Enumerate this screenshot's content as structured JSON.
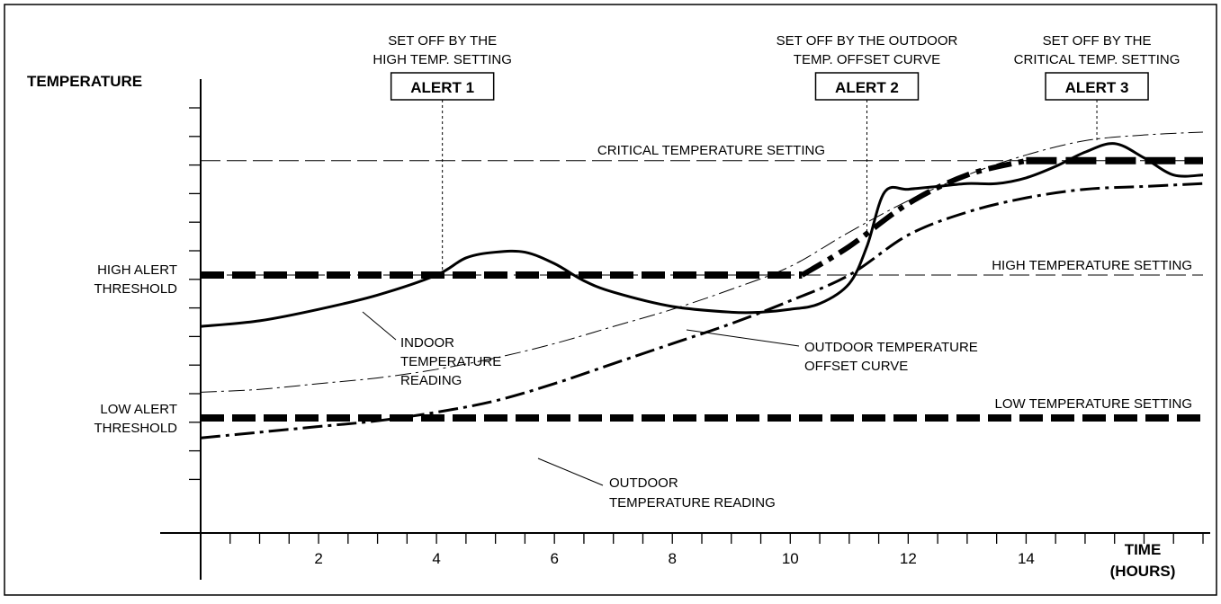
{
  "chart_data": {
    "type": "line",
    "y_title": "TEMPERATURE",
    "x_title_line1": "TIME",
    "x_title_line2": "(HOURS)",
    "x_tick_labels": [
      "2",
      "4",
      "6",
      "8",
      "10",
      "12",
      "14"
    ],
    "xlim": [
      0,
      17
    ],
    "y_axis_has_numbers": false,
    "grid": false,
    "left_labels": {
      "high_line1": "HIGH ALERT",
      "high_line2": "THRESHOLD",
      "low_line1": "LOW ALERT",
      "low_line2": "THRESHOLD"
    },
    "settings": {
      "critical": "CRITICAL TEMPERATURE SETTING",
      "high": "HIGH TEMPERATURE SETTING",
      "low": "LOW TEMPERATURE SETTING"
    },
    "alerts": [
      {
        "label": "ALERT 1",
        "note_line1": "SET OFF BY THE",
        "note_line2": "HIGH TEMP. SETTING",
        "time": 4.1
      },
      {
        "label": "ALERT 2",
        "note_line1": "SET OFF BY THE OUTDOOR",
        "note_line2": "TEMP. OFFSET CURVE",
        "time": 11.3
      },
      {
        "label": "ALERT 3",
        "note_line1": "SET OFF BY THE",
        "note_line2": "CRITICAL TEMP. SETTING",
        "time": 15.2
      }
    ],
    "curve_labels": {
      "indoor": [
        "INDOOR",
        "TEMPERATURE",
        "READING"
      ],
      "offset": [
        "OUTDOOR TEMPERATURE",
        "OFFSET CURVE"
      ],
      "outdoor": [
        "OUTDOOR",
        "TEMPERATURE READING"
      ]
    },
    "series": [
      {
        "key": "indoor",
        "style": "solid",
        "x": [
          0,
          1,
          2,
          3,
          4,
          4.5,
          5,
          5.5,
          6,
          6.5,
          7,
          8,
          9,
          9.5,
          10,
          10.5,
          11,
          11.3,
          11.6,
          12,
          12.5,
          13,
          13.5,
          14,
          14.5,
          15,
          15.5,
          16,
          16.5,
          17
        ],
        "y": [
          0.32,
          0.34,
          0.38,
          0.43,
          0.5,
          0.56,
          0.58,
          0.58,
          0.54,
          0.48,
          0.44,
          0.39,
          0.37,
          0.37,
          0.38,
          0.4,
          0.47,
          0.6,
          0.79,
          0.8,
          0.81,
          0.82,
          0.82,
          0.84,
          0.88,
          0.93,
          0.96,
          0.91,
          0.85,
          0.85
        ]
      },
      {
        "key": "offset",
        "style": "dash-dot-thin",
        "x": [
          0,
          1,
          2,
          3,
          4,
          5,
          6,
          7,
          8,
          9,
          10,
          11,
          12,
          13,
          14,
          15,
          16,
          17
        ],
        "y": [
          0.09,
          0.1,
          0.12,
          0.14,
          0.17,
          0.21,
          0.26,
          0.32,
          0.38,
          0.45,
          0.53,
          0.65,
          0.76,
          0.85,
          0.92,
          0.97,
          0.99,
          1.0
        ]
      },
      {
        "key": "alert_curve",
        "style": "dash-dot-bold",
        "x": [
          10.2,
          11,
          12,
          13,
          14
        ],
        "y": [
          0.5,
          0.6,
          0.75,
          0.85,
          0.9
        ]
      },
      {
        "key": "outdoor",
        "style": "dash-dot",
        "x": [
          0,
          1,
          2,
          3,
          4,
          5,
          6,
          7,
          8,
          9,
          10,
          11,
          12,
          13,
          14,
          15,
          16,
          17
        ],
        "y": [
          -0.07,
          -0.05,
          -0.03,
          -0.01,
          0.02,
          0.06,
          0.12,
          0.19,
          0.26,
          0.33,
          0.41,
          0.5,
          0.64,
          0.72,
          0.77,
          0.8,
          0.81,
          0.82
        ]
      }
    ],
    "levels": {
      "critical": 0.9,
      "high": 0.5,
      "low": 0.0
    },
    "high_alert_segment": [
      0,
      10.2
    ],
    "critical_alert_segment": [
      14,
      17
    ]
  }
}
